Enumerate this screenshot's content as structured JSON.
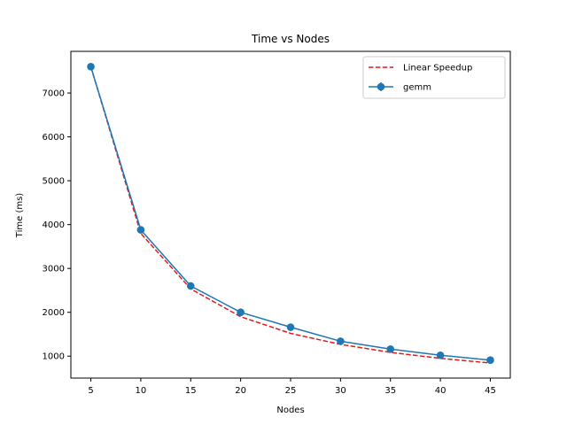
{
  "chart_data": {
    "type": "line",
    "title": "Time vs Nodes",
    "xlabel": "Nodes",
    "ylabel": "Time (ms)",
    "xlim": [
      3,
      47
    ],
    "ylim": [
      500,
      7950
    ],
    "xticks": [
      5,
      10,
      15,
      20,
      25,
      30,
      35,
      40,
      45
    ],
    "yticks": [
      1000,
      2000,
      3000,
      4000,
      5000,
      6000,
      7000
    ],
    "grid": false,
    "legend_position": "top-right",
    "x": [
      5,
      10,
      15,
      20,
      25,
      30,
      35,
      40,
      45
    ],
    "series": [
      {
        "name": "Linear Speedup",
        "style": "dashed",
        "color": "#e31a1c",
        "values": [
          7600,
          3800,
          2533,
          1900,
          1520,
          1267,
          1086,
          950,
          844
        ]
      },
      {
        "name": "gemm",
        "style": "solid-markers",
        "color": "#1f77b4",
        "values": [
          7600,
          3880,
          2600,
          2000,
          1660,
          1340,
          1160,
          1020,
          910
        ]
      }
    ]
  }
}
